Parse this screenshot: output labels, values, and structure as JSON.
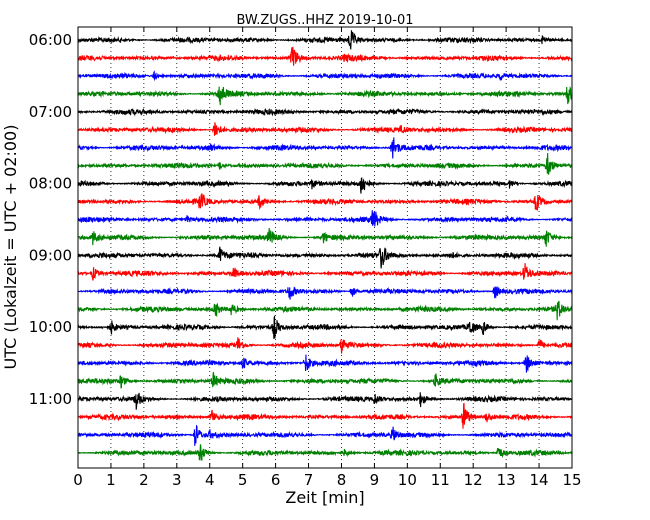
{
  "chart_data": {
    "type": "line",
    "title": "BW.ZUGS..HHZ 2019-10-01",
    "xlabel": "Zeit  [min]",
    "ylabel": "UTC (Lokalzeit = UTC + 02:00)",
    "xlim": [
      0,
      15
    ],
    "x_ticks": [
      "0",
      "1",
      "2",
      "3",
      "4",
      "5",
      "6",
      "7",
      "8",
      "9",
      "10",
      "11",
      "12",
      "13",
      "14",
      "15"
    ],
    "y_ticks": [
      "06:00",
      "07:00",
      "08:00",
      "09:00",
      "10:00",
      "11:00"
    ],
    "grid": "vertical dotted",
    "row_start": "06:00",
    "row_interval_min": 15,
    "colors": [
      "#000000",
      "#ff0000",
      "#0000ff",
      "#008000"
    ],
    "traces": [
      {
        "row": "06:00",
        "events": [
          {
            "t": 8.25,
            "amp": 1.0
          },
          {
            "t": 14.1,
            "amp": 0.35
          }
        ]
      },
      {
        "row": "06:15",
        "events": [
          {
            "t": 6.5,
            "amp": 1.1
          },
          {
            "t": 8.1,
            "amp": 0.25
          }
        ]
      },
      {
        "row": "06:30",
        "events": [
          {
            "t": 2.3,
            "amp": 0.3
          },
          {
            "t": 12.8,
            "amp": 0.3
          }
        ]
      },
      {
        "row": "06:45",
        "events": [
          {
            "t": 4.3,
            "amp": 1.0
          },
          {
            "t": 14.85,
            "amp": 0.9
          }
        ]
      },
      {
        "row": "07:00",
        "events": []
      },
      {
        "row": "07:15",
        "events": [
          {
            "t": 4.15,
            "amp": 0.9
          },
          {
            "t": 9.8,
            "amp": 0.3
          }
        ]
      },
      {
        "row": "07:30",
        "events": [
          {
            "t": 9.55,
            "amp": 1.0
          },
          {
            "t": 4.0,
            "amp": 0.25
          }
        ]
      },
      {
        "row": "07:45",
        "events": [
          {
            "t": 4.3,
            "amp": 0.3
          },
          {
            "t": 14.25,
            "amp": 0.9
          }
        ]
      },
      {
        "row": "08:00",
        "events": [
          {
            "t": 8.6,
            "amp": 0.9
          },
          {
            "t": 7.1,
            "amp": 0.3
          },
          {
            "t": 13.1,
            "amp": 0.3
          }
        ]
      },
      {
        "row": "08:15",
        "events": [
          {
            "t": 3.7,
            "amp": 0.7
          },
          {
            "t": 5.5,
            "amp": 0.5
          },
          {
            "t": 13.9,
            "amp": 0.8
          }
        ]
      },
      {
        "row": "08:30",
        "events": [
          {
            "t": 8.95,
            "amp": 0.9
          },
          {
            "t": 3.3,
            "amp": 0.25
          }
        ]
      },
      {
        "row": "08:45",
        "events": [
          {
            "t": 0.45,
            "amp": 0.5
          },
          {
            "t": 5.8,
            "amp": 0.7
          },
          {
            "t": 7.45,
            "amp": 0.4
          },
          {
            "t": 14.2,
            "amp": 0.7
          }
        ]
      },
      {
        "row": "09:00",
        "events": [
          {
            "t": 4.3,
            "amp": 0.6
          },
          {
            "t": 9.2,
            "amp": 1.0
          },
          {
            "t": 11.3,
            "amp": 0.3
          }
        ]
      },
      {
        "row": "09:15",
        "events": [
          {
            "t": 0.45,
            "amp": 0.5
          },
          {
            "t": 4.7,
            "amp": 0.5
          },
          {
            "t": 13.55,
            "amp": 0.8
          }
        ]
      },
      {
        "row": "09:30",
        "events": [
          {
            "t": 6.4,
            "amp": 0.7
          },
          {
            "t": 8.3,
            "amp": 0.5
          },
          {
            "t": 12.65,
            "amp": 0.6
          }
        ]
      },
      {
        "row": "09:45",
        "events": [
          {
            "t": 4.15,
            "amp": 0.6
          },
          {
            "t": 4.65,
            "amp": 0.5
          },
          {
            "t": 14.55,
            "amp": 0.7
          }
        ]
      },
      {
        "row": "10:00",
        "events": [
          {
            "t": 1.0,
            "amp": 0.5
          },
          {
            "t": 5.95,
            "amp": 0.9
          },
          {
            "t": 11.9,
            "amp": 0.6
          },
          {
            "t": 12.3,
            "amp": 0.5
          }
        ]
      },
      {
        "row": "10:15",
        "events": [
          {
            "t": 4.85,
            "amp": 0.6
          },
          {
            "t": 8.0,
            "amp": 0.7
          },
          {
            "t": 14.0,
            "amp": 0.5
          }
        ]
      },
      {
        "row": "10:30",
        "events": [
          {
            "t": 5.0,
            "amp": 0.5
          },
          {
            "t": 6.9,
            "amp": 0.8
          },
          {
            "t": 13.6,
            "amp": 0.8
          }
        ]
      },
      {
        "row": "10:45",
        "events": [
          {
            "t": 1.3,
            "amp": 0.5
          },
          {
            "t": 4.1,
            "amp": 0.6
          },
          {
            "t": 10.85,
            "amp": 0.5
          }
        ]
      },
      {
        "row": "11:00",
        "events": [
          {
            "t": 1.75,
            "amp": 0.7
          },
          {
            "t": 9.0,
            "amp": 0.4
          },
          {
            "t": 10.4,
            "amp": 0.5
          }
        ]
      },
      {
        "row": "11:15",
        "events": [
          {
            "t": 4.05,
            "amp": 0.6
          },
          {
            "t": 11.7,
            "amp": 1.1
          },
          {
            "t": 12.4,
            "amp": 0.4
          }
        ]
      },
      {
        "row": "11:30",
        "events": [
          {
            "t": 3.55,
            "amp": 1.0
          },
          {
            "t": 9.55,
            "amp": 0.6
          },
          {
            "t": 4.0,
            "amp": 0.3
          }
        ]
      },
      {
        "row": "11:45",
        "events": [
          {
            "t": 3.7,
            "amp": 0.8
          },
          {
            "t": 12.75,
            "amp": 0.6
          },
          {
            "t": 8.1,
            "amp": 0.3
          }
        ]
      }
    ]
  }
}
